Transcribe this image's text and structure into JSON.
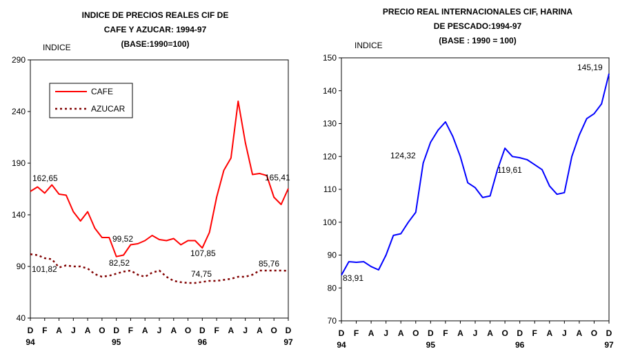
{
  "charts_text": {
    "left": {
      "title_line1": "INDICE DE PRECIOS REALES CIF DE",
      "title_line2": "CAFE Y AZUCAR: 1994-97",
      "title_line3": "(BASE:1990=100)",
      "ylabel": "INDICE"
    },
    "right": {
      "title_line1": "PRECIO REAL INTERNACIONALES CIF, HARINA",
      "title_line2": "DE PESCADO:1994-97",
      "title_line3": "(BASE : 1990 = 100)",
      "ylabel": "INDICE"
    }
  },
  "chart_data": [
    {
      "type": "line",
      "title": "INDICE DE PRECIOS REALES CIF DE CAFE Y AZUCAR: 1994-97 (BASE:1990=100)",
      "ylabel": "INDICE",
      "ylim": [
        40,
        290
      ],
      "yticks": [
        40,
        90,
        140,
        190,
        240,
        290
      ],
      "categories": [
        "D",
        "E",
        "F",
        "M",
        "A",
        "M",
        "J",
        "J",
        "A",
        "S",
        "O",
        "N",
        "D",
        "E",
        "F",
        "M",
        "A",
        "M",
        "J",
        "J",
        "A",
        "S",
        "O",
        "N",
        "D",
        "E",
        "F",
        "M",
        "A",
        "M",
        "J",
        "J",
        "A",
        "S",
        "O",
        "N",
        "D"
      ],
      "xtick_labels": [
        "D",
        "F",
        "A",
        "J",
        "A",
        "O",
        "D",
        "F",
        "A",
        "J",
        "A",
        "O",
        "D",
        "F",
        "A",
        "J",
        "A",
        "O",
        "D"
      ],
      "year_labels": [
        "94",
        "95",
        "96",
        "97"
      ],
      "grid": false,
      "legend_position": "top-left",
      "series": [
        {
          "name": "CAFE",
          "color": "#ff0000",
          "style": "solid",
          "values": [
            162.65,
            167,
            161,
            169,
            160,
            159,
            143,
            134,
            143,
            127,
            118,
            118,
            99.52,
            101,
            111,
            112,
            115,
            120,
            116,
            115,
            117,
            111,
            115,
            115,
            107.85,
            123,
            157,
            183,
            195,
            250,
            210,
            179,
            180,
            178,
            157,
            150,
            165.41
          ]
        },
        {
          "name": "AZUCAR",
          "color": "#800000",
          "style": "dotted",
          "values": [
            101.82,
            101,
            98,
            97,
            89,
            91,
            90,
            90,
            88,
            82.52,
            80,
            81,
            83,
            85,
            86,
            82,
            80,
            84,
            86,
            80,
            76,
            74.75,
            74,
            74,
            75,
            76,
            76,
            77,
            78,
            80,
            80,
            82,
            86,
            86,
            86,
            86,
            85.76
          ]
        }
      ],
      "annotations": [
        "162,65",
        "101,82",
        "99,52",
        "82,52",
        "107,85",
        "74,75",
        "165,41",
        "85,76"
      ]
    },
    {
      "type": "line",
      "title": "PRECIO REAL INTERNACIONALES CIF, HARINA DE PESCADO:1994-97 (BASE : 1990 = 100)",
      "ylabel": "INDICE",
      "ylim": [
        70,
        150
      ],
      "yticks": [
        70,
        80,
        90,
        100,
        110,
        120,
        130,
        140,
        150
      ],
      "categories": [
        "D",
        "E",
        "F",
        "M",
        "A",
        "M",
        "J",
        "J",
        "A",
        "S",
        "O",
        "N",
        "D",
        "E",
        "F",
        "M",
        "A",
        "M",
        "J",
        "J",
        "A",
        "S",
        "O",
        "N",
        "D",
        "E",
        "F",
        "M",
        "A",
        "M",
        "J",
        "J",
        "A",
        "S",
        "O",
        "N",
        "D"
      ],
      "xtick_labels": [
        "D",
        "F",
        "A",
        "J",
        "A",
        "O",
        "D",
        "F",
        "A",
        "J",
        "A",
        "O",
        "D",
        "F",
        "A",
        "J",
        "A",
        "O",
        "D"
      ],
      "year_labels": [
        "94",
        "95",
        "96",
        "97"
      ],
      "grid": false,
      "series": [
        {
          "color": "#0000ff",
          "style": "solid",
          "values": [
            83.91,
            88,
            87.8,
            88,
            86.5,
            85.5,
            90,
            96,
            96.5,
            100,
            103,
            118,
            124.32,
            128,
            130.5,
            126,
            120,
            112,
            110.5,
            107.5,
            108,
            116,
            122.5,
            120,
            119.61,
            119,
            117.5,
            116,
            111,
            108.5,
            109,
            120,
            126.5,
            131.5,
            133,
            136,
            145.19
          ]
        }
      ],
      "annotations": [
        "83,91",
        "124,32",
        "119,61",
        "145,19"
      ]
    }
  ]
}
